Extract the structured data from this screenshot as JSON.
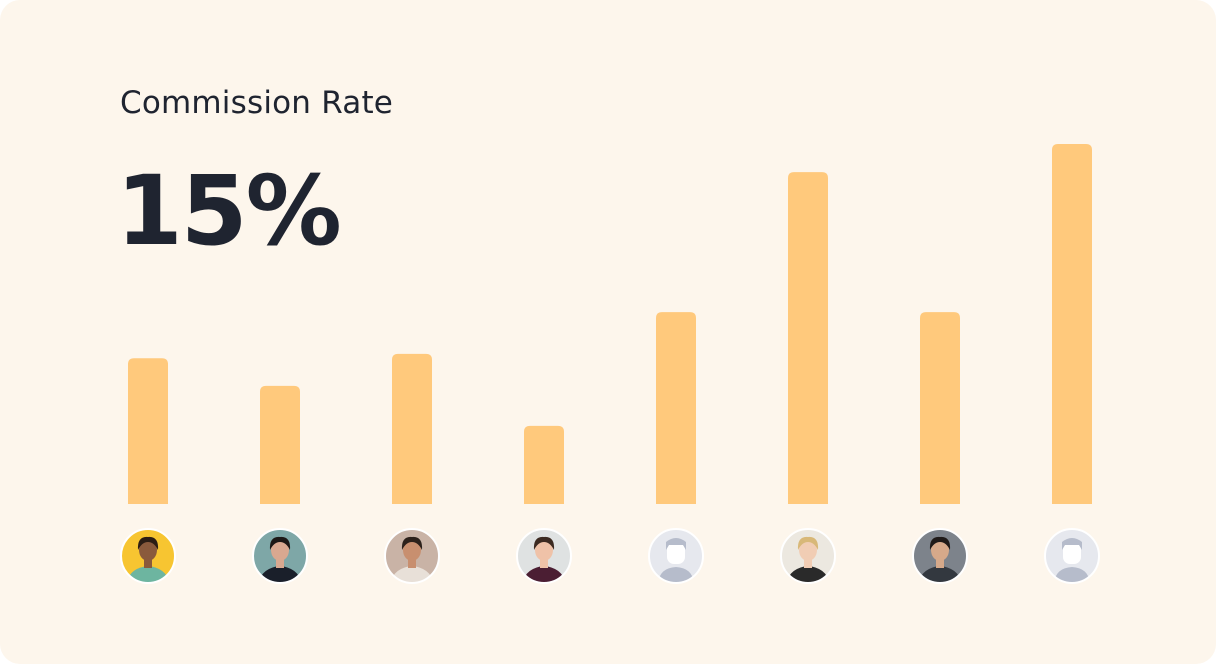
{
  "header": {
    "title": "Commission Rate",
    "value": "15%"
  },
  "colors": {
    "background": "#fdf6ec",
    "bar": "#ffc97c",
    "text": "#1f2430"
  },
  "chart_data": {
    "type": "bar",
    "title": "Commission Rate",
    "xlabel": "",
    "ylabel": "",
    "grid": false,
    "ylim": [
      0,
      100
    ],
    "categories": [
      "person-1",
      "person-2",
      "person-3",
      "person-4",
      "person-5",
      "person-6",
      "person-7",
      "person-8"
    ],
    "values": [
      40.5,
      32.8,
      41.7,
      21.7,
      53.3,
      92.2,
      53.3,
      100
    ],
    "x_markers": [
      {
        "name": "avatar-1",
        "kind": "photo",
        "bg": "#f7c531",
        "skin": "#8a5a3c",
        "hair": "#2b1d14",
        "shirt": "#6db5a0"
      },
      {
        "name": "avatar-2",
        "kind": "photo",
        "bg": "#7ea7a7",
        "skin": "#d9a890",
        "hair": "#1d1816",
        "shirt": "#1a1f2a"
      },
      {
        "name": "avatar-3",
        "kind": "photo",
        "bg": "#c9b3a6",
        "skin": "#c88f6f",
        "hair": "#2c211b",
        "shirt": "#e8e0d8"
      },
      {
        "name": "avatar-4",
        "kind": "photo",
        "bg": "#dfe2e2",
        "skin": "#efc2a8",
        "hair": "#3c2a21",
        "shirt": "#4b1e33"
      },
      {
        "name": "avatar-5",
        "kind": "placeholder",
        "bg": "#e6e8ee",
        "skin": "#ffffff",
        "hair": "#b6bccb",
        "shirt": "#b6bccb"
      },
      {
        "name": "avatar-6",
        "kind": "photo",
        "bg": "#ece8e0",
        "skin": "#f1cdb4",
        "hair": "#d8b878",
        "shirt": "#2a2a2a"
      },
      {
        "name": "avatar-7",
        "kind": "photo",
        "bg": "#7d838b",
        "skin": "#d6a98a",
        "hair": "#1f1a18",
        "shirt": "#33383f"
      },
      {
        "name": "avatar-8",
        "kind": "placeholder",
        "bg": "#e6e8ee",
        "skin": "#ffffff",
        "hair": "#b6bccb",
        "shirt": "#b6bccb"
      }
    ]
  }
}
